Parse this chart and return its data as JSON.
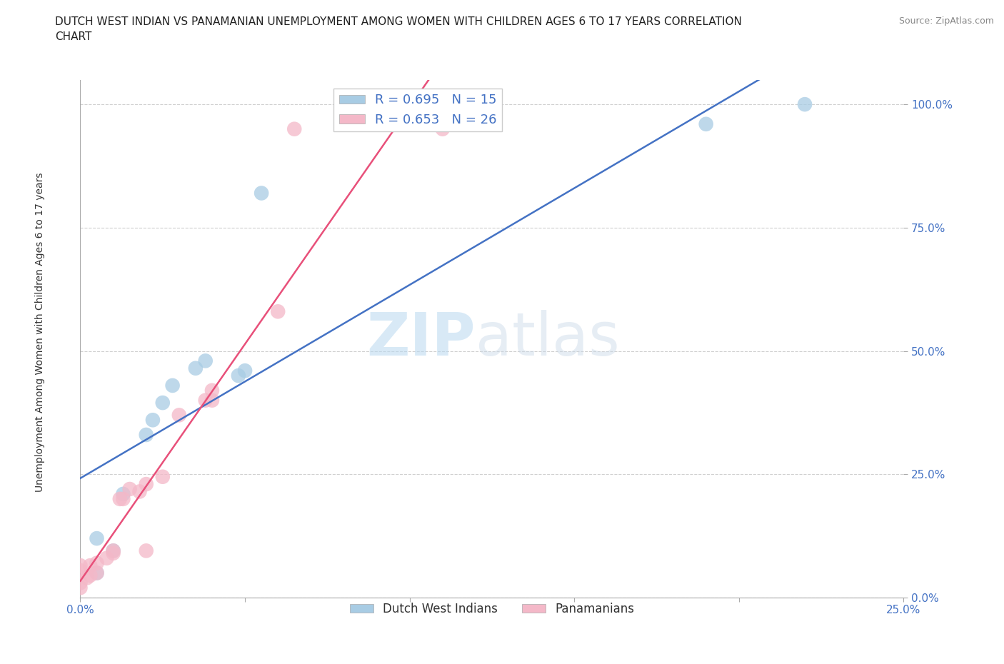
{
  "title_line1": "DUTCH WEST INDIAN VS PANAMANIAN UNEMPLOYMENT AMONG WOMEN WITH CHILDREN AGES 6 TO 17 YEARS CORRELATION",
  "title_line2": "CHART",
  "source": "Source: ZipAtlas.com",
  "ylabel": "Unemployment Among Women with Children Ages 6 to 17 years",
  "xlim": [
    0.0,
    0.25
  ],
  "ylim": [
    0.0,
    1.05
  ],
  "yticks": [
    0.0,
    0.25,
    0.5,
    0.75,
    1.0
  ],
  "ytick_labels": [
    "0.0%",
    "25.0%",
    "50.0%",
    "75.0%",
    "100.0%"
  ],
  "xticks": [
    0.0,
    0.05,
    0.1,
    0.15,
    0.2,
    0.25
  ],
  "xtick_labels": [
    "0.0%",
    "",
    "",
    "",
    "",
    "25.0%"
  ],
  "blue_color": "#a8cce4",
  "pink_color": "#f4b8c8",
  "blue_line_color": "#4472c4",
  "pink_line_color": "#e8507a",
  "R_blue": 0.695,
  "N_blue": 15,
  "R_pink": 0.653,
  "N_pink": 26,
  "watermark_zip": "ZIP",
  "watermark_atlas": "atlas",
  "legend_label_blue": "Dutch West Indians",
  "legend_label_pink": "Panamanians",
  "blue_x": [
    0.005,
    0.005,
    0.01,
    0.013,
    0.02,
    0.022,
    0.025,
    0.028,
    0.035,
    0.038,
    0.048,
    0.05,
    0.055,
    0.19,
    0.22
  ],
  "blue_y": [
    0.05,
    0.12,
    0.095,
    0.21,
    0.33,
    0.36,
    0.395,
    0.43,
    0.465,
    0.48,
    0.45,
    0.46,
    0.82,
    0.96,
    1.0
  ],
  "pink_x": [
    0.0,
    0.0,
    0.0,
    0.0,
    0.002,
    0.003,
    0.003,
    0.005,
    0.005,
    0.008,
    0.01,
    0.01,
    0.012,
    0.013,
    0.015,
    0.018,
    0.02,
    0.02,
    0.025,
    0.03,
    0.038,
    0.04,
    0.04,
    0.06,
    0.065,
    0.11
  ],
  "pink_y": [
    0.02,
    0.03,
    0.055,
    0.065,
    0.04,
    0.045,
    0.065,
    0.05,
    0.07,
    0.08,
    0.09,
    0.095,
    0.2,
    0.2,
    0.22,
    0.215,
    0.23,
    0.095,
    0.245,
    0.37,
    0.4,
    0.4,
    0.42,
    0.58,
    0.95,
    0.95
  ],
  "background_color": "#ffffff",
  "grid_color": "#d0d0d0",
  "tick_color": "#4472c4"
}
